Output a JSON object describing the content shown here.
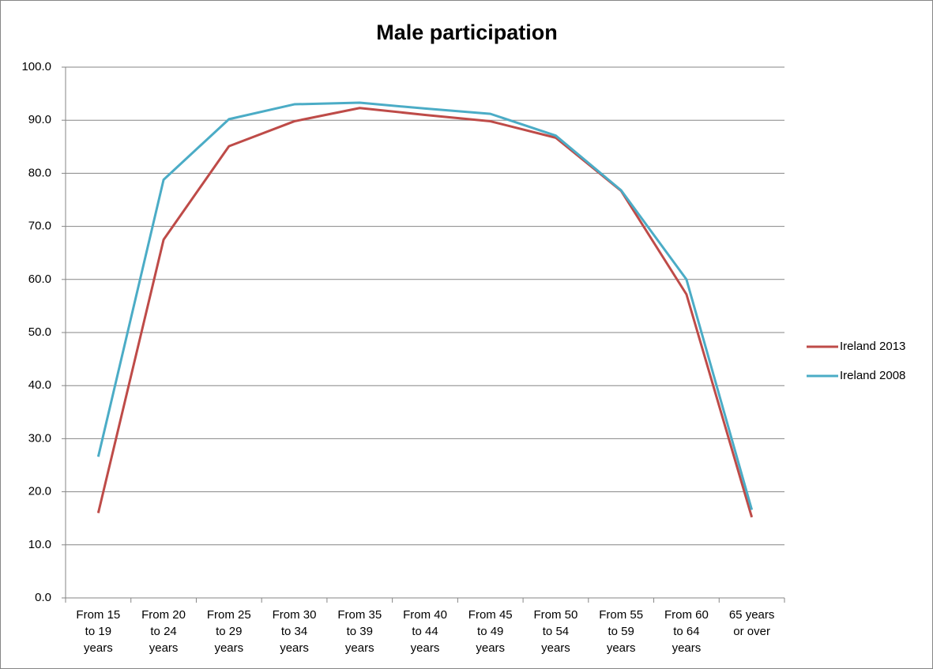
{
  "chart_data": {
    "type": "line",
    "title": "Male participation",
    "categories": [
      "From 15 to 19 years",
      "From 20 to 24 years",
      "From 25 to 29 years",
      "From 30 to 34 years",
      "From 35 to 39 years",
      "From 40 to 44 years",
      "From 45 to 49 years",
      "From 50 to 54 years",
      "From 55 to 59 years",
      "From 60 to 64 years",
      "65 years or over"
    ],
    "series": [
      {
        "name": "Ireland 2013",
        "color": "#be4b48",
        "values": [
          16.0,
          67.5,
          85.1,
          89.8,
          92.3,
          91.0,
          89.8,
          86.7,
          76.7,
          57.2,
          15.2
        ]
      },
      {
        "name": "Ireland 2008",
        "color": "#4bacc6",
        "values": [
          26.6,
          78.8,
          90.2,
          93.0,
          93.3,
          92.2,
          91.2,
          87.1,
          76.8,
          60.0,
          16.6
        ]
      }
    ],
    "ylim": [
      0,
      100
    ],
    "yticks": [
      {
        "value": 0,
        "label": "0.0"
      },
      {
        "value": 10,
        "label": "10.0"
      },
      {
        "value": 20,
        "label": "20.0"
      },
      {
        "value": 30,
        "label": "30.0"
      },
      {
        "value": 40,
        "label": "40.0"
      },
      {
        "value": 50,
        "label": "50.0"
      },
      {
        "value": 60,
        "label": "60.0"
      },
      {
        "value": 70,
        "label": "70.0"
      },
      {
        "value": 80,
        "label": "80.0"
      },
      {
        "value": 90,
        "label": "90.0"
      },
      {
        "value": 100,
        "label": "100.0"
      }
    ],
    "grid": true,
    "legend": "right"
  }
}
